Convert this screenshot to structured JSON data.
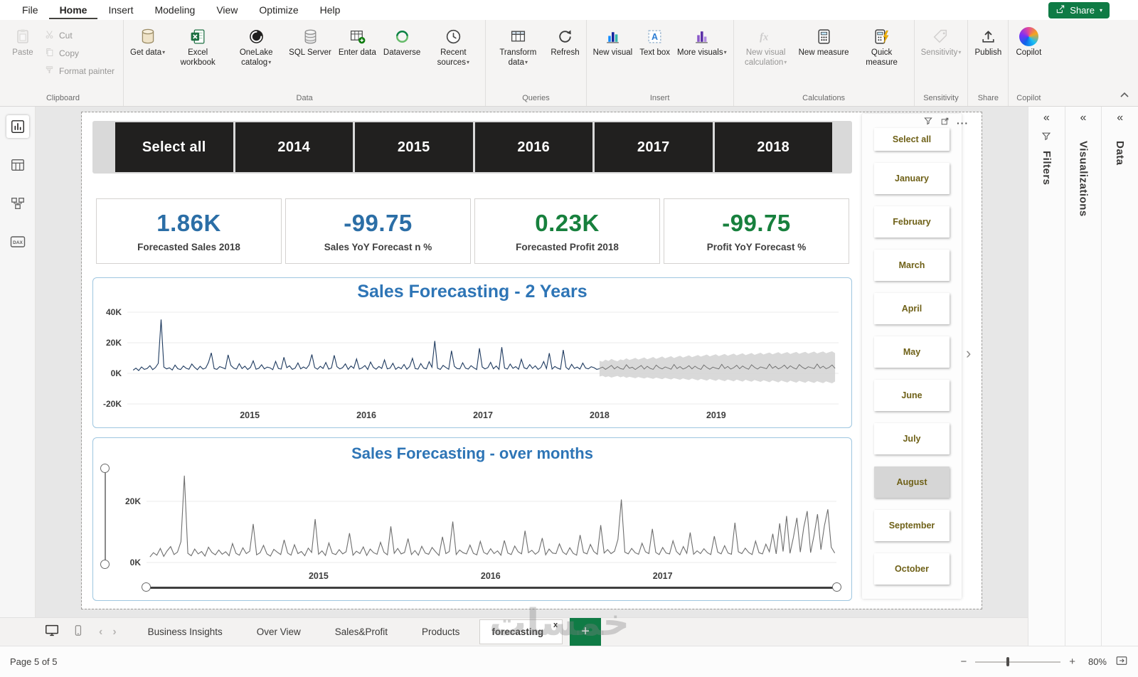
{
  "app": {
    "menu_items": [
      "File",
      "Home",
      "Insert",
      "Modeling",
      "View",
      "Optimize",
      "Help"
    ],
    "share_button": "Share"
  },
  "ribbon": {
    "groups": {
      "clipboard": "Clipboard",
      "data": "Data",
      "queries": "Queries",
      "insert": "Insert",
      "calculations": "Calculations",
      "sensitivity": "Sensitivity",
      "share": "Share",
      "copilot": "Copilot"
    },
    "buttons": {
      "paste": "Paste",
      "cut": "Cut",
      "copy": "Copy",
      "format_painter": "Format painter",
      "get_data": "Get data",
      "excel_workbook": "Excel workbook",
      "onelake_catalog": "OneLake catalog",
      "sql_server": "SQL Server",
      "enter_data": "Enter data",
      "dataverse": "Dataverse",
      "recent_sources": "Recent sources",
      "transform_data": "Transform data",
      "refresh": "Refresh",
      "new_visual": "New visual",
      "text_box": "Text box",
      "more_visuals": "More visuals",
      "new_visual_calculation": "New visual calculation",
      "new_measure": "New measure",
      "quick_measure": "Quick measure",
      "sensitivity": "Sensitivity",
      "publish": "Publish",
      "copilot": "Copilot"
    }
  },
  "year_slicer": {
    "options": [
      "Select all",
      "2014",
      "2015",
      "2016",
      "2017",
      "2018"
    ]
  },
  "kpis": [
    {
      "value": "1.86K",
      "label": "Forecasted Sales 2018",
      "color": "#2b6ea6"
    },
    {
      "value": "-99.75",
      "label": "Sales YoY Forecast n %",
      "color": "#2b6ea6"
    },
    {
      "value": "0.23K",
      "label": "Forecasted Profit 2018",
      "color": "#17803d"
    },
    {
      "value": "-99.75",
      "label": "Profit YoY Forecast %",
      "color": "#17803d"
    }
  ],
  "month_slicer": {
    "items": [
      "Select all",
      "January",
      "February",
      "March",
      "April",
      "May",
      "June",
      "July",
      "August",
      "September",
      "October"
    ],
    "selected": "August"
  },
  "panels": {
    "filters": "Filters",
    "visualizations": "Visualizations",
    "data": "Data"
  },
  "pages": {
    "tabs": [
      "Business Insights",
      "Over View",
      "Sales&Profit",
      "Products",
      "forecasting"
    ],
    "active": "forecasting",
    "close_label": "x"
  },
  "status": {
    "page_indicator": "Page 5 of 5",
    "zoom": "80%"
  },
  "watermark": "خمسات",
  "chart_data": [
    {
      "id": "sales-forecasting-2-years",
      "type": "line",
      "title": "Sales Forecasting - 2 Years",
      "units": "K",
      "x_range": [
        2013.95,
        2020.05
      ],
      "y_range": [
        -20,
        43.7
      ],
      "y_ticks": [
        {
          "label": "40K",
          "value": 40
        },
        {
          "label": "20K",
          "value": 20
        },
        {
          "label": "0K",
          "value": 0
        },
        {
          "label": "-20K",
          "value": -20
        }
      ],
      "x_ticks": [
        {
          "label": "2015",
          "value": 2015
        },
        {
          "label": "2016",
          "value": 2016
        },
        {
          "label": "2017",
          "value": 2017
        },
        {
          "label": "2018",
          "value": 2018
        },
        {
          "label": "2019",
          "value": 2019
        }
      ],
      "band": {
        "name": "forecast-confidence",
        "color": "#d2d2d2",
        "x_start": 2018.0,
        "x_end": 2020.02,
        "upper": [
          8.2,
          7.6,
          8.9,
          8.1,
          9.4,
          8.5,
          7.9,
          9.1,
          8.6,
          9.8,
          8.8,
          9.3,
          10.1,
          9.0,
          9.6,
          10.4,
          9.2,
          9.9,
          10.7,
          9.5,
          10.2,
          11.0,
          9.8,
          10.5,
          11.2,
          10.0,
          10.8,
          11.5,
          10.3,
          11.0,
          11.8,
          10.6,
          11.3,
          12.0,
          10.9,
          11.6,
          12.3,
          11.1,
          11.8,
          12.5,
          11.3,
          12.0,
          12.7,
          11.5,
          12.2,
          12.9,
          11.7,
          12.4,
          13.1,
          11.9,
          12.6,
          13.3,
          12.1,
          12.8,
          13.5,
          12.3,
          13.0,
          13.6,
          12.4,
          13.1,
          13.8,
          12.6,
          13.3,
          13.9,
          12.7,
          13.4,
          14.0,
          12.8,
          13.5,
          14.1,
          12.9,
          13.6,
          14.2,
          13.0,
          13.7,
          14.3,
          13.1,
          13.8,
          14.4,
          13.2
        ],
        "lower": [
          -2.1,
          -1.6,
          -2.5,
          -1.9,
          -2.8,
          -2.2,
          -1.7,
          -2.6,
          -2.0,
          -3.0,
          -2.3,
          -2.7,
          -3.2,
          -2.4,
          -2.9,
          -3.4,
          -2.6,
          -3.1,
          -3.6,
          -2.8,
          -3.3,
          -3.8,
          -3.0,
          -3.5,
          -4.0,
          -3.1,
          -3.7,
          -4.2,
          -3.3,
          -3.9,
          -4.4,
          -3.4,
          -4.0,
          -4.6,
          -3.6,
          -4.2,
          -4.8,
          -3.7,
          -4.3,
          -4.9,
          -3.8,
          -4.5,
          -5.1,
          -4.0,
          -4.6,
          -5.2,
          -4.1,
          -4.8,
          -5.4,
          -4.2,
          -4.9,
          -5.5,
          -4.4,
          -5.0,
          -5.6,
          -4.5,
          -5.1,
          -5.8,
          -4.6,
          -5.2,
          -5.9,
          -4.7,
          -5.4,
          -6.0,
          -4.8,
          -5.5,
          -6.1,
          -4.9,
          -5.6,
          -6.2,
          -5.0,
          -5.7,
          -6.3,
          -5.1,
          -5.8,
          -6.4,
          -5.2,
          -5.9,
          -6.5,
          -5.3
        ]
      },
      "series": [
        {
          "name": "actual-sales",
          "color": "#1e3a5f",
          "width": 1.1,
          "x_start": 2014.0,
          "x_end": 2018.0,
          "values": [
            2.1,
            3.4,
            1.8,
            4.2,
            2.6,
            3.1,
            5.0,
            2.4,
            3.8,
            6.5,
            35.2,
            4.1,
            2.9,
            3.6,
            2.2,
            5.4,
            3.0,
            2.5,
            4.8,
            3.3,
            2.7,
            6.1,
            3.9,
            2.4,
            4.6,
            2.8,
            3.5,
            7.2,
            13.4,
            3.1,
            2.6,
            4.4,
            3.7,
            2.9,
            12.1,
            5.2,
            3.4,
            2.8,
            6.3,
            3.1,
            4.7,
            2.5,
            3.9,
            8.2,
            2.7,
            3.3,
            5.6,
            2.9,
            4.1,
            3.6,
            2.4,
            7.8,
            3.2,
            2.8,
            10.5,
            3.7,
            4.9,
            2.6,
            3.4,
            6.8,
            2.9,
            4.2,
            3.1,
            5.5,
            12.3,
            3.8,
            2.7,
            4.6,
            3.2,
            7.1,
            2.8,
            3.5,
            11.8,
            4.3,
            2.9,
            3.7,
            6.2,
            2.6,
            4.8,
            3.3,
            9.4,
            2.8,
            3.6,
            5.1,
            2.5,
            7.4,
            3.9,
            2.7,
            4.5,
            3.2,
            8.8,
            2.9,
            3.4,
            6.6,
            2.6,
            4.1,
            3.0,
            5.8,
            2.7,
            4.4,
            9.8,
            3.1,
            2.8,
            6.4,
            3.5,
            2.9,
            7.6,
            4.0,
            21.2,
            3.3,
            2.6,
            5.2,
            3.8,
            2.7,
            14.8,
            4.6,
            3.1,
            2.9,
            6.9,
            3.4,
            2.8,
            5.0,
            3.6,
            2.5,
            16.4,
            4.2,
            2.9,
            3.7,
            7.2,
            3.0,
            4.8,
            2.6,
            17.1,
            3.5,
            2.8,
            6.1,
            3.3,
            4.4,
            2.7,
            9.2,
            3.6,
            2.9,
            5.7,
            3.2,
            4.9,
            2.6,
            3.8,
            7.7,
            3.1,
            13.2,
            2.8,
            4.5,
            3.4,
            2.7,
            15.3,
            3.9,
            2.5,
            5.9,
            3.2,
            4.1,
            2.8,
            6.7,
            3.5,
            2.9,
            4.3,
            3.7,
            2.6,
            3.0
          ]
        },
        {
          "name": "forecast-sales",
          "color": "#6b6b6b",
          "width": 0.9,
          "x_start": 2018.0,
          "x_end": 2020.02,
          "values": [
            3.2,
            4.1,
            2.6,
            3.8,
            5.2,
            2.9,
            4.4,
            3.1,
            2.7,
            5.6,
            3.4,
            4.0,
            2.5,
            3.9,
            5.1,
            2.8,
            4.6,
            3.2,
            2.6,
            5.4,
            3.7,
            2.9,
            4.2,
            3.5,
            2.7,
            5.8,
            3.1,
            4.4,
            2.8,
            3.6,
            5.0,
            2.9,
            4.7,
            3.3,
            2.6,
            5.5,
            3.8,
            2.7,
            4.1,
            3.4,
            2.9,
            5.9,
            3.2,
            4.5,
            2.8,
            3.7,
            5.3,
            3.0,
            4.8,
            3.5,
            2.7,
            5.6,
            3.9,
            2.8,
            4.2,
            3.6,
            3.0,
            6.0,
            3.3,
            4.6,
            2.9,
            3.8,
            5.4,
            3.1,
            4.9,
            3.6,
            2.8,
            5.7,
            4.0,
            2.9,
            4.3,
            3.7,
            3.1,
            6.1,
            3.4,
            4.7,
            3.0,
            3.9,
            5.5,
            3.2
          ]
        }
      ]
    },
    {
      "id": "sales-forecasting-over-months",
      "type": "line",
      "title": "Sales Forecasting - over months",
      "units": "K",
      "x_range": [
        2014.0,
        2018.01
      ],
      "y_range": [
        -0.7,
        29.53
      ],
      "y_ticks": [
        {
          "label": "20K",
          "value": 20
        },
        {
          "label": "0K",
          "value": 0
        }
      ],
      "x_ticks": [
        {
          "label": "2015",
          "value": 2015
        },
        {
          "label": "2016",
          "value": 2016
        },
        {
          "label": "2017",
          "value": 2017
        }
      ],
      "series": [
        {
          "name": "sales-by-month",
          "color": "#6e6e6e",
          "width": 1.1,
          "x_start": 2014.02,
          "x_end": 2018.0,
          "values": [
            1.8,
            3.2,
            2.4,
            4.6,
            2.0,
            3.8,
            5.2,
            2.6,
            3.4,
            6.8,
            28.4,
            3.0,
            2.2,
            4.4,
            2.8,
            3.6,
            2.1,
            5.0,
            3.3,
            2.5,
            4.1,
            2.7,
            3.5,
            2.2,
            6.2,
            3.0,
            2.4,
            4.8,
            2.9,
            3.7,
            12.6,
            2.5,
            3.2,
            5.6,
            2.8,
            2.1,
            4.3,
            3.4,
            2.6,
            7.4,
            3.1,
            2.4,
            5.8,
            2.9,
            3.6,
            2.2,
            4.7,
            3.3,
            14.2,
            2.7,
            3.8,
            2.3,
            6.4,
            3.0,
            2.6,
            4.2,
            2.8,
            3.5,
            9.6,
            2.4,
            3.7,
            2.9,
            5.1,
            2.3,
            4.4,
            3.2,
            2.7,
            6.6,
            3.4,
            2.5,
            11.8,
            3.0,
            4.6,
            2.8,
            3.3,
            7.8,
            2.6,
            3.9,
            2.4,
            5.3,
            3.1,
            2.7,
            4.9,
            3.5,
            2.3,
            8.4,
            2.9,
            3.6,
            13.4,
            2.6,
            4.1,
            3.2,
            2.8,
            5.7,
            3.0,
            2.5,
            6.9,
            3.3,
            2.7,
            4.5,
            2.9,
            3.8,
            2.4,
            7.2,
            3.1,
            2.6,
            5.4,
            3.5,
            2.8,
            10.4,
            3.2,
            4.0,
            2.7,
            3.6,
            8.0,
            2.5,
            4.4,
            3.1,
            2.9,
            6.1,
            3.4,
            2.6,
            4.8,
            3.0,
            2.4,
            9.0,
            3.3,
            2.8,
            5.9,
            3.6,
            2.7,
            12.2,
            3.1,
            4.2,
            2.9,
            3.7,
            7.5,
            20.6,
            3.4,
            2.8,
            4.6,
            3.2,
            2.7,
            6.3,
            3.5,
            2.9,
            11.0,
            3.3,
            2.6,
            4.9,
            3.1,
            2.8,
            7.1,
            3.6,
            2.5,
            5.2,
            3.0,
            9.8,
            2.7,
            3.8,
            2.9,
            4.5,
            3.2,
            2.6,
            8.6,
            3.4,
            2.8,
            5.5,
            3.1,
            2.7,
            13.0,
            3.5,
            2.9,
            4.7,
            3.3,
            2.6,
            7.0,
            3.2,
            2.8,
            6.0,
            3.5,
            9.4,
            2.8,
            12.8,
            3.6,
            15.2,
            3.0,
            8.2,
            14.6,
            3.4,
            11.4,
            16.8,
            3.2,
            9.0,
            15.8,
            4.2,
            12.0,
            17.4,
            5.0,
            3.1
          ]
        }
      ]
    }
  ]
}
